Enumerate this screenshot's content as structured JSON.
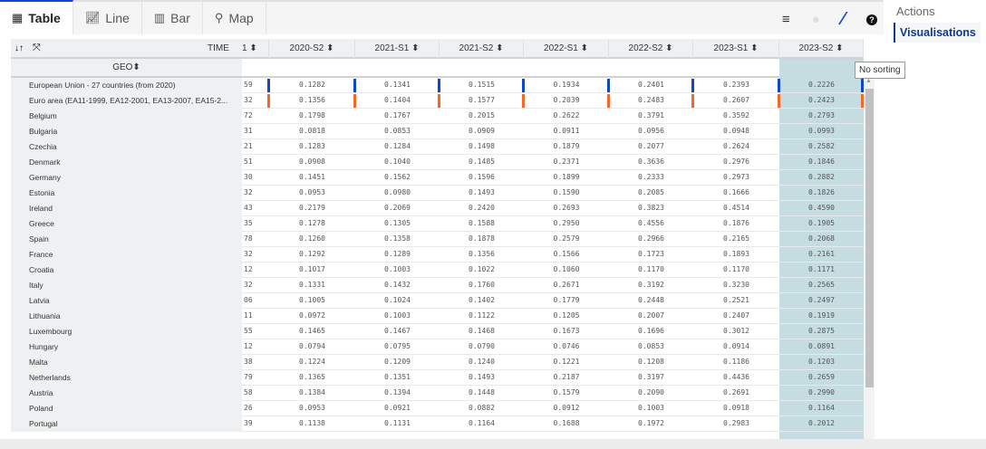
{
  "tabs": [
    {
      "label": "Table",
      "icon": "table-icon"
    },
    {
      "label": "Line",
      "icon": "line-chart-icon"
    },
    {
      "label": "Bar",
      "icon": "bar-chart-icon"
    },
    {
      "label": "Map",
      "icon": "map-pin-icon"
    }
  ],
  "sidebar": {
    "actions": "Actions",
    "visualisations": "Visualisations"
  },
  "tooltip": "No sorting",
  "table": {
    "time_label": "TIME",
    "geo_label": "GEO",
    "partial_column": "1",
    "columns": [
      "2020-S2",
      "2021-S1",
      "2021-S2",
      "2022-S1",
      "2022-S2",
      "2023-S1",
      "2023-S2"
    ],
    "marker_colors": {
      "European Union - 27 countries (from 2020)": "#0e47cb",
      "Euro area (EA11-1999, EA12-2001, EA13-2007, EA15-2...": "#f06a2e"
    },
    "highlight_color": "#c5dce1",
    "rows": [
      {
        "geo": "European Union - 27 countries (from 2020)",
        "p": "59",
        "v": [
          "0.1282",
          "0.1341",
          "0.1515",
          "0.1934",
          "0.2401",
          "0.2393",
          "0.2226"
        ]
      },
      {
        "geo": "Euro area (EA11-1999, EA12-2001, EA13-2007, EA15-2...",
        "p": "32",
        "v": [
          "0.1356",
          "0.1404",
          "0.1577",
          "0.2039",
          "0.2483",
          "0.2607",
          "0.2423"
        ]
      },
      {
        "geo": "Belgium",
        "p": "72",
        "v": [
          "0.1798",
          "0.1767",
          "0.2015",
          "0.2622",
          "0.3791",
          "0.3592",
          "0.2793"
        ]
      },
      {
        "geo": "Bulgaria",
        "p": "31",
        "v": [
          "0.0818",
          "0.0853",
          "0.0909",
          "0.0911",
          "0.0956",
          "0.0948",
          "0.0993"
        ]
      },
      {
        "geo": "Czechia",
        "p": "21",
        "v": [
          "0.1283",
          "0.1284",
          "0.1498",
          "0.1879",
          "0.2077",
          "0.2624",
          "0.2582"
        ]
      },
      {
        "geo": "Denmark",
        "p": "51",
        "v": [
          "0.0908",
          "0.1040",
          "0.1485",
          "0.2371",
          "0.3636",
          "0.2976",
          "0.1846"
        ]
      },
      {
        "geo": "Germany",
        "p": "30",
        "v": [
          "0.1451",
          "0.1562",
          "0.1596",
          "0.1899",
          "0.2333",
          "0.2973",
          "0.2882"
        ]
      },
      {
        "geo": "Estonia",
        "p": "32",
        "v": [
          "0.0953",
          "0.0980",
          "0.1493",
          "0.1590",
          "0.2085",
          "0.1666",
          "0.1826"
        ]
      },
      {
        "geo": "Ireland",
        "p": "43",
        "v": [
          "0.2179",
          "0.2069",
          "0.2420",
          "0.2693",
          "0.3823",
          "0.4514",
          "0.4590"
        ]
      },
      {
        "geo": "Greece",
        "p": "35",
        "v": [
          "0.1278",
          "0.1305",
          "0.1588",
          "0.2950",
          "0.4556",
          "0.1876",
          "0.1905"
        ]
      },
      {
        "geo": "Spain",
        "p": "78",
        "v": [
          "0.1260",
          "0.1358",
          "0.1878",
          "0.2579",
          "0.2966",
          "0.2165",
          "0.2068"
        ]
      },
      {
        "geo": "France",
        "p": "32",
        "v": [
          "0.1292",
          "0.1289",
          "0.1356",
          "0.1566",
          "0.1723",
          "0.1893",
          "0.2161"
        ]
      },
      {
        "geo": "Croatia",
        "p": "12",
        "v": [
          "0.1017",
          "0.1003",
          "0.1022",
          "0.1060",
          "0.1170",
          "0.1170",
          "0.1171"
        ]
      },
      {
        "geo": "Italy",
        "p": "32",
        "v": [
          "0.1331",
          "0.1432",
          "0.1760",
          "0.2671",
          "0.3192",
          "0.3230",
          "0.2565"
        ]
      },
      {
        "geo": "Latvia",
        "p": "06",
        "v": [
          "0.1005",
          "0.1024",
          "0.1402",
          "0.1779",
          "0.2448",
          "0.2521",
          "0.2497"
        ]
      },
      {
        "geo": "Lithuania",
        "p": "11",
        "v": [
          "0.0972",
          "0.1003",
          "0.1122",
          "0.1205",
          "0.2007",
          "0.2407",
          "0.1919"
        ]
      },
      {
        "geo": "Luxembourg",
        "p": "55",
        "v": [
          "0.1465",
          "0.1467",
          "0.1468",
          "0.1673",
          "0.1696",
          "0.3012",
          "0.2875"
        ]
      },
      {
        "geo": "Hungary",
        "p": "12",
        "v": [
          "0.0794",
          "0.0795",
          "0.0790",
          "0.0746",
          "0.0853",
          "0.0914",
          "0.0891"
        ]
      },
      {
        "geo": "Malta",
        "p": "38",
        "v": [
          "0.1224",
          "0.1209",
          "0.1240",
          "0.1221",
          "0.1208",
          "0.1186",
          "0.1203"
        ]
      },
      {
        "geo": "Netherlands",
        "p": "79",
        "v": [
          "0.1365",
          "0.1351",
          "0.1493",
          "0.2187",
          "0.3197",
          "0.4436",
          "0.2659"
        ]
      },
      {
        "geo": "Austria",
        "p": "58",
        "v": [
          "0.1384",
          "0.1394",
          "0.1448",
          "0.1579",
          "0.2090",
          "0.2691",
          "0.2990"
        ]
      },
      {
        "geo": "Poland",
        "p": "26",
        "v": [
          "0.0953",
          "0.0921",
          "0.0882",
          "0.0912",
          "0.1003",
          "0.0918",
          "0.1164"
        ]
      },
      {
        "geo": "Portugal",
        "p": "39",
        "v": [
          "0.1138",
          "0.1131",
          "0.1164",
          "0.1688",
          "0.1972",
          "0.2983",
          "0.2012"
        ]
      }
    ]
  }
}
